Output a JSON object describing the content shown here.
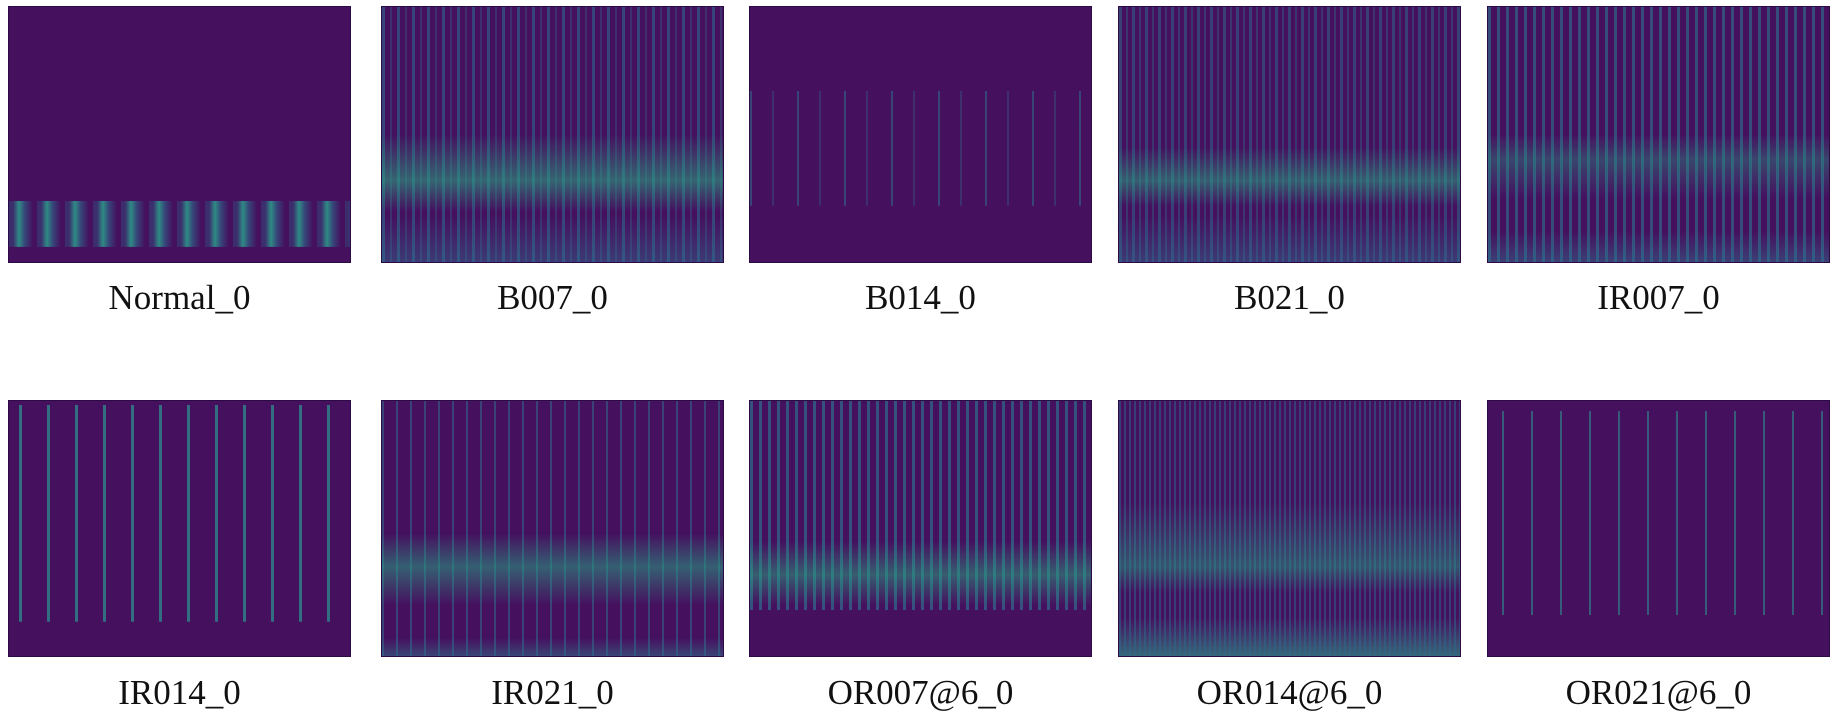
{
  "panels": [
    {
      "label": "Normal_0"
    },
    {
      "label": "B007_0"
    },
    {
      "label": "B014_0"
    },
    {
      "label": "B021_0"
    },
    {
      "label": "IR007_0"
    },
    {
      "label": "IR014_0"
    },
    {
      "label": "IR021_0"
    },
    {
      "label": "OR007@6_0"
    },
    {
      "label": "OR014@6_0"
    },
    {
      "label": "OR021@6_0"
    }
  ]
}
